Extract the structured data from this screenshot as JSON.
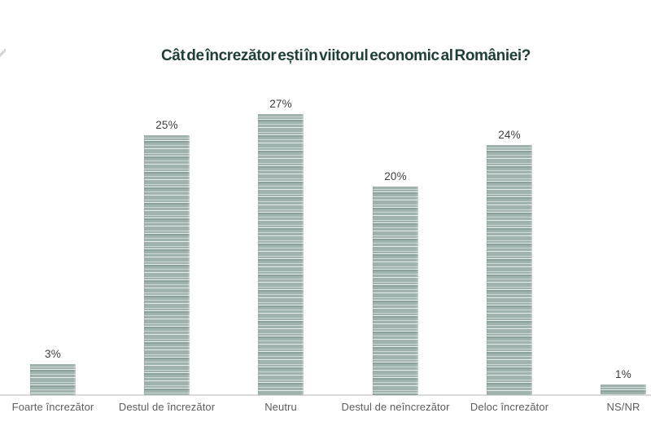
{
  "decor": {
    "partial_logo_mark": {
      "color": "#c4cac8"
    }
  },
  "chart_data": {
    "type": "bar",
    "title": "Cât de încrezător ești în viitorul economic al României?",
    "categories": [
      "Foarte încrezător",
      "Destul de încrezător",
      "Neutru",
      "Destul de neîncrezător",
      "Deloc încrezător",
      "NS/NR"
    ],
    "values": [
      3,
      25,
      27,
      20,
      24,
      1
    ],
    "value_labels": [
      "3%",
      "25%",
      "27%",
      "20%",
      "24%",
      "1%"
    ],
    "unit": "%",
    "xlabel": "",
    "ylabel": "",
    "ylim": [
      0,
      27
    ],
    "grid": false,
    "legend": null,
    "y_axis_visible": false,
    "colors": {
      "title": "#1f3e38",
      "value_label": "#3e3e3e",
      "category_label": "#5e5e5e",
      "baseline": "#dadad8",
      "bar_base": "#a0b2ad",
      "bar_stripe_light": "#ccd8d4",
      "bar_stripe_white": "#e7edeb",
      "bar_stripe_dark": "#8ba19b"
    }
  }
}
